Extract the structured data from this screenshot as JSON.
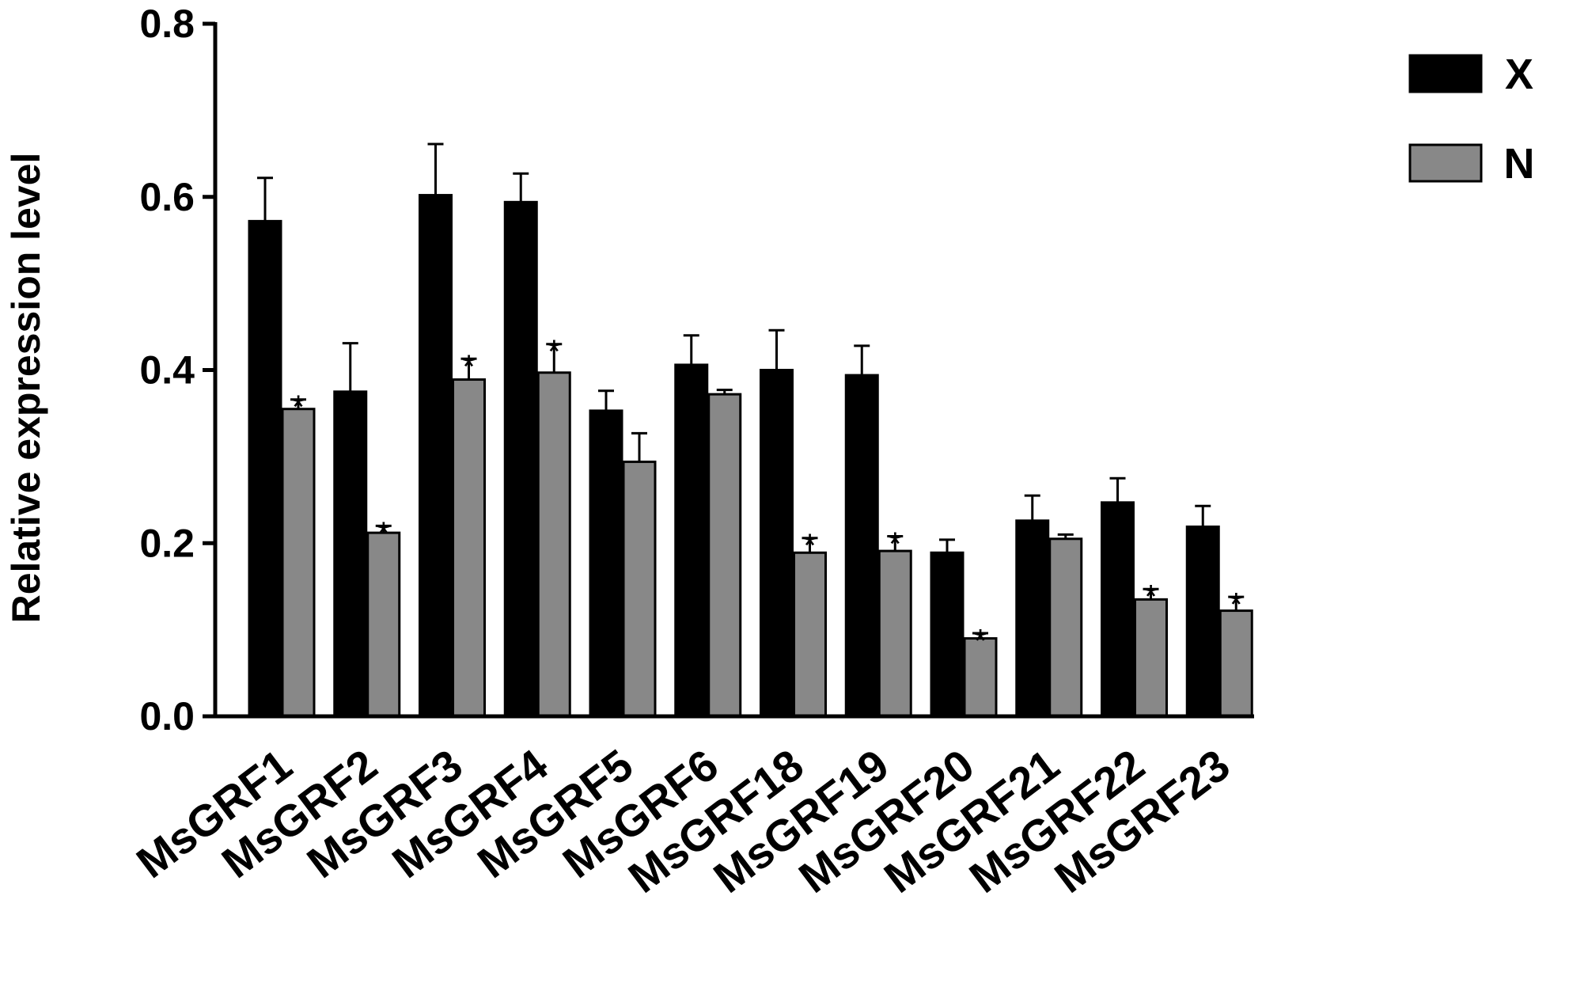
{
  "chart_data": {
    "type": "bar",
    "title": "",
    "xlabel": "",
    "ylabel": "Relative expression level",
    "ylim": [
      0,
      0.8
    ],
    "yticks": [
      "0.0",
      "0.2",
      "0.4",
      "0.6",
      "0.8"
    ],
    "categories": [
      "MsGRF1",
      "MsGRF2",
      "MsGRF3",
      "MsGRF4",
      "MsGRF5",
      "MsGRF6",
      "MsGRF18",
      "MsGRF19",
      "MsGRF20",
      "MsGRF21",
      "MsGRF22",
      "MsGRF23"
    ],
    "series": [
      {
        "name": "X",
        "color": "#000000",
        "values": [
          0.572,
          0.375,
          0.602,
          0.594,
          0.353,
          0.406,
          0.4,
          0.394,
          0.189,
          0.226,
          0.247,
          0.219
        ],
        "errors": [
          0.05,
          0.056,
          0.059,
          0.033,
          0.023,
          0.034,
          0.046,
          0.034,
          0.015,
          0.029,
          0.028,
          0.024
        ]
      },
      {
        "name": "N",
        "color": "#888888",
        "values": [
          0.355,
          0.212,
          0.389,
          0.397,
          0.294,
          0.372,
          0.189,
          0.191,
          0.09,
          0.205,
          0.135,
          0.122
        ],
        "errors": [
          0.011,
          0.008,
          0.024,
          0.033,
          0.033,
          0.005,
          0.017,
          0.017,
          0.006,
          0.005,
          0.012,
          0.016
        ],
        "significant": [
          true,
          true,
          true,
          true,
          false,
          false,
          true,
          true,
          true,
          false,
          true,
          true
        ]
      }
    ],
    "significance_marker": "*",
    "legend_position": "top-right"
  }
}
